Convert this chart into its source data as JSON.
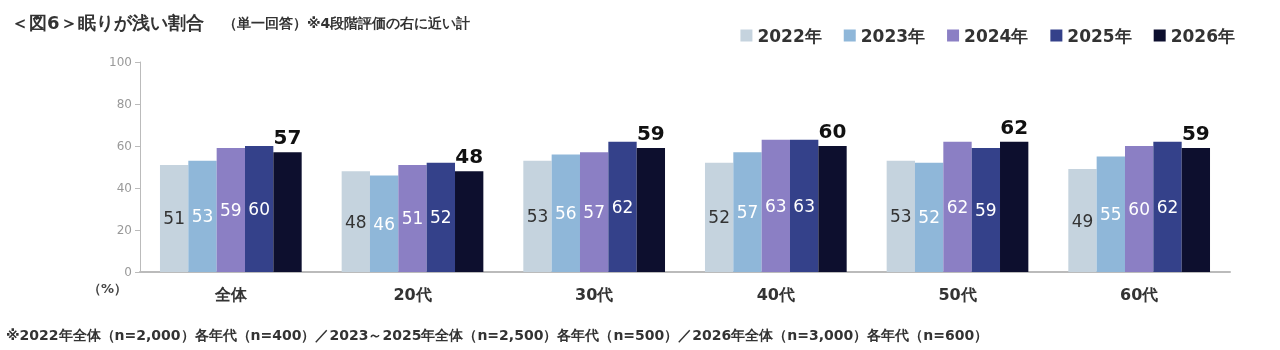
{
  "chart_data": {
    "type": "bar",
    "title": "＜図6＞眠りが浅い割合",
    "subtitle": "（単一回答）※4段階評価の右に近い計",
    "ylabel": "（%）",
    "categories": [
      "全体",
      "20代",
      "30代",
      "40代",
      "50代",
      "60代"
    ],
    "series": [
      {
        "name": "2022年",
        "color": "#c5d3de",
        "values": [
          51,
          48,
          53,
          52,
          53,
          49
        ]
      },
      {
        "name": "2023年",
        "color": "#8fb7d9",
        "values": [
          53,
          46,
          56,
          57,
          52,
          55
        ]
      },
      {
        "name": "2024年",
        "color": "#8b7fc4",
        "values": [
          59,
          51,
          57,
          63,
          62,
          60
        ]
      },
      {
        "name": "2025年",
        "color": "#34418a",
        "values": [
          60,
          52,
          62,
          63,
          59,
          62
        ]
      },
      {
        "name": "2026年",
        "color": "#0d0f2e",
        "values": [
          57,
          48,
          59,
          60,
          62,
          59
        ]
      }
    ],
    "ylim": [
      0,
      100
    ],
    "yticks": [
      0,
      20,
      40,
      60,
      80,
      100
    ],
    "grid": false,
    "legend": "top right",
    "data_labels": true,
    "annotations": [
      "※2022年全体（n=2,000）各年代（n=400）／2023～2025年全体（n=2,500）各年代（n=500）／2026年全体（n=3,000）各年代（n=600）"
    ]
  }
}
